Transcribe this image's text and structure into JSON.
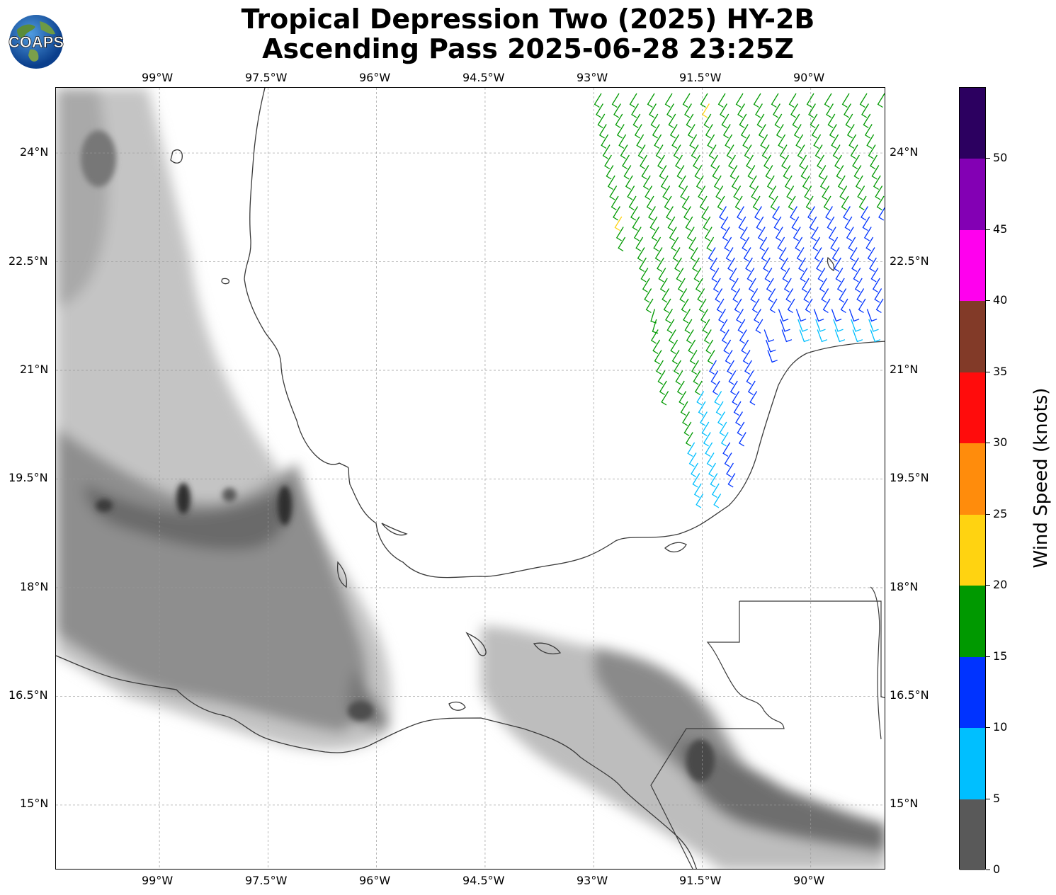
{
  "title": {
    "line1": "Tropical Depression Two (2025) HY-2B",
    "line2": "Ascending Pass 2025-06-28 23:25Z"
  },
  "logo": {
    "text": "COAPS",
    "icon": "globe-icon"
  },
  "map": {
    "lon_labels": [
      "99°W",
      "97.5°W",
      "96°W",
      "94.5°W",
      "93°W",
      "91.5°W",
      "90°W"
    ],
    "lat_labels": [
      "24°N",
      "22.5°N",
      "21°N",
      "19.5°N",
      "18°N",
      "16.5°N",
      "15°N"
    ],
    "lon_values": [
      -99,
      -97.5,
      -96,
      -94.5,
      -93,
      -91.5,
      -90
    ],
    "lat_values": [
      24,
      22.5,
      21,
      19.5,
      18,
      16.5,
      15
    ],
    "extent": {
      "lon_min": -100.43,
      "lon_max": -88.96,
      "lat_min": 14.1,
      "lat_max": 24.9
    }
  },
  "colorbar": {
    "label": "Wind Speed (knots)",
    "ticks": [
      "0",
      "5",
      "10",
      "15",
      "20",
      "25",
      "30",
      "35",
      "40",
      "45",
      "50"
    ],
    "range": [
      0,
      55
    ],
    "bins": [
      {
        "from": 0,
        "to": 5,
        "color": "#595959"
      },
      {
        "from": 5,
        "to": 10,
        "color": "#00bfff"
      },
      {
        "from": 10,
        "to": 15,
        "color": "#0033ff"
      },
      {
        "from": 15,
        "to": 20,
        "color": "#009900"
      },
      {
        "from": 20,
        "to": 25,
        "color": "#ffd311"
      },
      {
        "from": 25,
        "to": 30,
        "color": "#ff8c0c"
      },
      {
        "from": 30,
        "to": 35,
        "color": "#ff0c0c"
      },
      {
        "from": 35,
        "to": 40,
        "color": "#823a28"
      },
      {
        "from": 40,
        "to": 45,
        "color": "#ff00ee"
      },
      {
        "from": 45,
        "to": 50,
        "color": "#8300b4"
      },
      {
        "from": 50,
        "to": 55,
        "color": "#2c0060"
      }
    ]
  }
}
